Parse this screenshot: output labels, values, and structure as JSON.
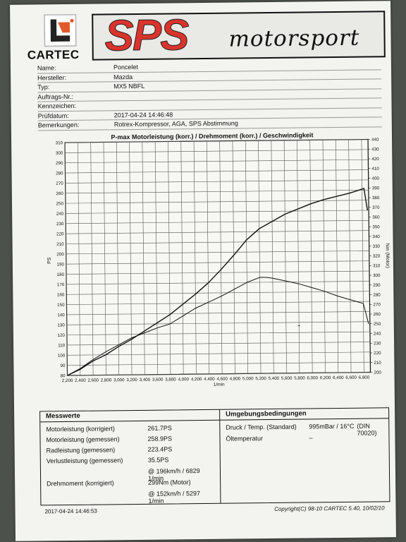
{
  "header": {
    "logo_text": "CARTEC",
    "brand_primary": "SPS",
    "brand_secondary": "motorsport",
    "brand_color": "#d9342c"
  },
  "info": [
    {
      "label": "Name:",
      "value": "Poncelet"
    },
    {
      "label": "Hersteller:",
      "value": "Mazda"
    },
    {
      "label": "Typ:",
      "value": "MX5 NBFL"
    },
    {
      "label": "Auftrags-Nr.:",
      "value": ""
    },
    {
      "label": "Kennzeichen:",
      "value": ""
    },
    {
      "label": "Prüfdatum:",
      "value": "2017-04-24 14:46:48"
    },
    {
      "label": "Bemerkungen:",
      "value": "Rotrex-Kompressor, AGA, SPS Abstimmung"
    }
  ],
  "chart_data": {
    "type": "line",
    "title": "P-max Motorleistung (korr.) / Drehmoment (korr.) / Geschwindigkeit",
    "xlabel": "1/min",
    "ylabel_left": "PS",
    "ylabel_right": "Nm (Motor)",
    "xlim": [
      2200,
      6900
    ],
    "ylim_left": [
      80,
      310
    ],
    "ylim_right": [
      200,
      440
    ],
    "x_ticks": [
      "2,200",
      "2,400",
      "2,600",
      "2,800",
      "3,000",
      "3,200",
      "3,400",
      "3,600",
      "3,800",
      "4,000",
      "4,200",
      "4,400",
      "4,600",
      "4,800",
      "5,000",
      "5,200",
      "5,400",
      "5,600",
      "5,800",
      "6,000",
      "6,200",
      "6,400",
      "6,600",
      "6,800"
    ],
    "y_ticks_left": [
      "80",
      "90",
      "100",
      "110",
      "120",
      "130",
      "140",
      "150",
      "160",
      "170",
      "180",
      "190",
      "200",
      "210",
      "220",
      "230",
      "240",
      "250",
      "260",
      "270",
      "280",
      "290",
      "300",
      "310"
    ],
    "y_ticks_right": [
      "200",
      "210",
      "220",
      "230",
      "240",
      "250",
      "260",
      "270",
      "280",
      "290",
      "300",
      "310",
      "320",
      "330",
      "340",
      "350",
      "360",
      "370",
      "380",
      "390",
      "400",
      "410",
      "420",
      "430",
      "440"
    ],
    "grid": true,
    "series": [
      {
        "axis": "left",
        "x": [
          2200,
          2400,
          2600,
          2800,
          3000,
          3200,
          3400,
          3600,
          3800,
          4000,
          4200,
          4400,
          4600,
          4800,
          5000,
          5200,
          5400,
          5600,
          5800,
          6000,
          6200,
          6400,
          6600,
          6700,
          6800,
          6829,
          6880
        ],
        "values": [
          80,
          86,
          94,
          100,
          108,
          115,
          123,
          131,
          139,
          149,
          159,
          170,
          183,
          197,
          212,
          223,
          230,
          237,
          242,
          247,
          251,
          254,
          257,
          259,
          261,
          261.7,
          240
        ]
      },
      {
        "axis": "right",
        "x": [
          2200,
          2400,
          2600,
          2800,
          3000,
          3200,
          3400,
          3600,
          3800,
          4000,
          4200,
          4400,
          4600,
          4800,
          5000,
          5200,
          5297,
          5400,
          5600,
          5800,
          6000,
          6200,
          6400,
          6600,
          6800,
          6880
        ],
        "values": [
          200,
          207,
          216,
          224,
          231,
          238,
          243,
          248,
          252,
          260,
          268,
          274,
          280,
          287,
          294,
          299,
          299,
          298,
          295,
          292,
          288,
          284,
          279,
          275,
          271,
          250
        ]
      }
    ],
    "annotations": [
      {
        "text": "+"
      }
    ]
  },
  "measurements": {
    "title": "Messwerte",
    "rows": [
      {
        "label": "Motorleistung (korrigiert)",
        "value": "261.7PS"
      },
      {
        "label": "Motorleistung (gemessen)",
        "value": "258.9PS"
      },
      {
        "label": "Radleistung (gemessen)",
        "value": "223.4PS"
      },
      {
        "label": "Verlustleistung (gemessen)",
        "value": "35.5PS"
      },
      {
        "label": "",
        "value": "@ 196km/h / 6829 1/min"
      },
      {
        "label": "Drehmoment (korrigiert)",
        "value": "299Nm (Motor)"
      },
      {
        "label": "",
        "value": "@ 152km/h / 5297 1/min"
      }
    ]
  },
  "conditions": {
    "title": "Umgebungsbedingungen",
    "pressure_label": "Druck / Temp. (Standard)",
    "pressure_value": "995mBar / 16°C",
    "standard": "(DIN 70020)",
    "oil_label": "Öltemperatur",
    "oil_value": "–"
  },
  "footer": {
    "timestamp": "2017-04-24 14:46:53",
    "copyright": "Copyright(C) 98-10 CARTEC 5.40, 10/02/10"
  }
}
